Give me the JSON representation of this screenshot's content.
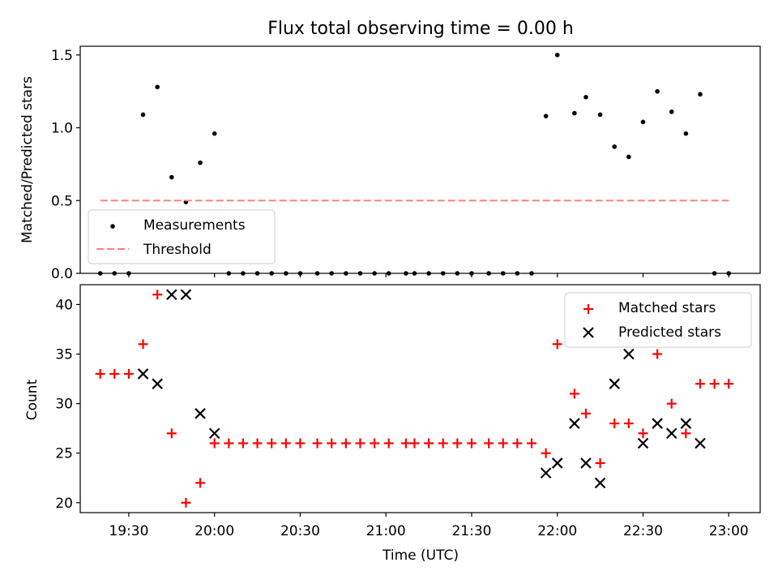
{
  "chart_data": [
    {
      "type": "scatter",
      "title": "Flux total observing time = 0.00 h",
      "xlabel": "",
      "ylabel": "Matched/Predicted stars",
      "x_unit": "time (UTC)",
      "xlim": [
        "19:13",
        "23:11"
      ],
      "ylim": [
        0,
        1.56
      ],
      "yticks": [
        0.0,
        0.5,
        1.0,
        1.5
      ],
      "ytick_labels": [
        "0.0",
        "0.5",
        "1.0",
        "1.5"
      ],
      "grid": false,
      "legend_position": "lower-left",
      "colors": {
        "measurements": "#000000",
        "threshold": "#ff8080"
      },
      "series": [
        {
          "name": "Measurements",
          "marker": "dot",
          "points": [
            [
              "19:20",
              0.0
            ],
            [
              "19:25",
              0.0
            ],
            [
              "19:30",
              0.0
            ],
            [
              "19:35",
              1.09
            ],
            [
              "19:40",
              1.28
            ],
            [
              "19:45",
              0.66
            ],
            [
              "19:50",
              0.49
            ],
            [
              "19:55",
              0.76
            ],
            [
              "20:00",
              0.96
            ],
            [
              "20:05",
              0.0
            ],
            [
              "20:10",
              0.0
            ],
            [
              "20:15",
              0.0
            ],
            [
              "20:20",
              0.0
            ],
            [
              "20:25",
              0.0
            ],
            [
              "20:30",
              0.0
            ],
            [
              "20:36",
              0.0
            ],
            [
              "20:41",
              0.0
            ],
            [
              "20:46",
              0.0
            ],
            [
              "20:51",
              0.0
            ],
            [
              "20:56",
              0.0
            ],
            [
              "21:01",
              0.0
            ],
            [
              "21:07",
              0.0
            ],
            [
              "21:10",
              0.0
            ],
            [
              "21:15",
              0.0
            ],
            [
              "21:20",
              0.0
            ],
            [
              "21:25",
              0.0
            ],
            [
              "21:30",
              0.0
            ],
            [
              "21:36",
              0.0
            ],
            [
              "21:41",
              0.0
            ],
            [
              "21:46",
              0.0
            ],
            [
              "21:51",
              0.0
            ],
            [
              "21:56",
              1.08
            ],
            [
              "22:00",
              1.5
            ],
            [
              "22:06",
              1.1
            ],
            [
              "22:10",
              1.21
            ],
            [
              "22:15",
              1.09
            ],
            [
              "22:20",
              0.87
            ],
            [
              "22:25",
              0.8
            ],
            [
              "22:30",
              1.04
            ],
            [
              "22:35",
              1.25
            ],
            [
              "22:40",
              1.11
            ],
            [
              "22:45",
              0.96
            ],
            [
              "22:50",
              1.23
            ],
            [
              "22:55",
              0.0
            ],
            [
              "23:00",
              0.0
            ]
          ]
        },
        {
          "name": "Threshold",
          "style": "dashed",
          "points": [
            [
              "19:20",
              0.5
            ],
            [
              "23:00",
              0.5
            ]
          ]
        }
      ]
    },
    {
      "type": "scatter",
      "title": "",
      "xlabel": "Time (UTC)",
      "ylabel": "Count",
      "x_unit": "time (UTC)",
      "xlim": [
        "19:13",
        "23:11"
      ],
      "ylim": [
        19,
        42
      ],
      "yticks": [
        20,
        25,
        30,
        35,
        40
      ],
      "ytick_labels": [
        "20",
        "25",
        "30",
        "35",
        "40"
      ],
      "xticks": [
        "19:30",
        "20:00",
        "20:30",
        "21:00",
        "21:30",
        "22:00",
        "22:30",
        "23:00"
      ],
      "xtick_labels": [
        "19:30",
        "20:00",
        "20:30",
        "21:00",
        "21:30",
        "22:00",
        "22:30",
        "23:00"
      ],
      "grid": false,
      "legend_position": "upper-right",
      "colors": {
        "matched": "#ff0000",
        "predicted": "#000000"
      },
      "series": [
        {
          "name": "Matched stars",
          "marker": "plus",
          "points": [
            [
              "19:20",
              33
            ],
            [
              "19:25",
              33
            ],
            [
              "19:30",
              33
            ],
            [
              "19:35",
              36
            ],
            [
              "19:40",
              41
            ],
            [
              "19:45",
              27
            ],
            [
              "19:50",
              20
            ],
            [
              "19:55",
              22
            ],
            [
              "20:00",
              26
            ],
            [
              "20:05",
              26
            ],
            [
              "20:10",
              26
            ],
            [
              "20:15",
              26
            ],
            [
              "20:20",
              26
            ],
            [
              "20:25",
              26
            ],
            [
              "20:30",
              26
            ],
            [
              "20:36",
              26
            ],
            [
              "20:41",
              26
            ],
            [
              "20:46",
              26
            ],
            [
              "20:51",
              26
            ],
            [
              "20:56",
              26
            ],
            [
              "21:01",
              26
            ],
            [
              "21:07",
              26
            ],
            [
              "21:10",
              26
            ],
            [
              "21:15",
              26
            ],
            [
              "21:20",
              26
            ],
            [
              "21:25",
              26
            ],
            [
              "21:30",
              26
            ],
            [
              "21:36",
              26
            ],
            [
              "21:41",
              26
            ],
            [
              "21:46",
              26
            ],
            [
              "21:51",
              26
            ],
            [
              "21:56",
              25
            ],
            [
              "22:00",
              36
            ],
            [
              "22:06",
              31
            ],
            [
              "22:10",
              29
            ],
            [
              "22:15",
              24
            ],
            [
              "22:20",
              28
            ],
            [
              "22:25",
              28
            ],
            [
              "22:30",
              27
            ],
            [
              "22:35",
              35
            ],
            [
              "22:40",
              30
            ],
            [
              "22:45",
              27
            ],
            [
              "22:50",
              32
            ],
            [
              "22:55",
              32
            ],
            [
              "23:00",
              32
            ]
          ]
        },
        {
          "name": "Predicted stars",
          "marker": "x",
          "points": [
            [
              "19:35",
              33
            ],
            [
              "19:40",
              32
            ],
            [
              "19:45",
              41
            ],
            [
              "19:50",
              41
            ],
            [
              "19:55",
              29
            ],
            [
              "20:00",
              27
            ],
            [
              "21:56",
              23
            ],
            [
              "22:00",
              24
            ],
            [
              "22:06",
              28
            ],
            [
              "22:10",
              24
            ],
            [
              "22:15",
              22
            ],
            [
              "22:20",
              32
            ],
            [
              "22:25",
              35
            ],
            [
              "22:30",
              26
            ],
            [
              "22:35",
              28
            ],
            [
              "22:40",
              27
            ],
            [
              "22:45",
              28
            ],
            [
              "22:50",
              26
            ]
          ]
        }
      ]
    }
  ]
}
